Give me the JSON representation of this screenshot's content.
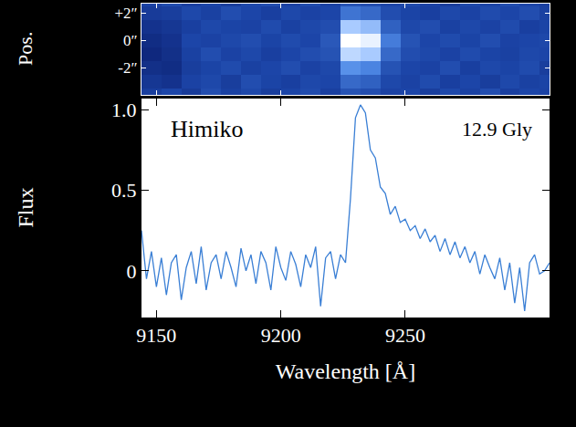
{
  "chart_data": [
    {
      "type": "heatmap",
      "y_label": "Pos.",
      "x": [
        9148,
        9156,
        9164,
        9172,
        9180,
        9188,
        9196,
        9204,
        9212,
        9220,
        9228,
        9236,
        9244,
        9252,
        9260,
        9268,
        9276,
        9284,
        9292,
        9300,
        9308
      ],
      "y": [
        -4,
        -3,
        -2,
        -1,
        0,
        1,
        2,
        3
      ],
      "z": [
        [
          0.3,
          0.35,
          0.28,
          0.38,
          0.32,
          0.36,
          0.3,
          0.34,
          0.37,
          0.31,
          0.4,
          0.38,
          0.33,
          0.35,
          0.3,
          0.36,
          0.32,
          0.38,
          0.31,
          0.35,
          0.33
        ],
        [
          0.25,
          0.22,
          0.33,
          0.36,
          0.3,
          0.38,
          0.34,
          0.31,
          0.36,
          0.35,
          0.48,
          0.45,
          0.36,
          0.33,
          0.37,
          0.31,
          0.35,
          0.3,
          0.36,
          0.32,
          0.34
        ],
        [
          0.2,
          0.18,
          0.3,
          0.34,
          0.37,
          0.32,
          0.35,
          0.38,
          0.33,
          0.36,
          0.62,
          0.58,
          0.4,
          0.35,
          0.33,
          0.38,
          0.31,
          0.36,
          0.34,
          0.37,
          0.3
        ],
        [
          0.15,
          0.2,
          0.32,
          0.38,
          0.33,
          0.36,
          0.31,
          0.35,
          0.38,
          0.4,
          0.85,
          0.8,
          0.48,
          0.38,
          0.36,
          0.33,
          0.37,
          0.34,
          0.32,
          0.36,
          0.35
        ],
        [
          0.18,
          0.22,
          0.35,
          0.33,
          0.36,
          0.38,
          0.34,
          0.37,
          0.35,
          0.42,
          1.0,
          0.95,
          0.55,
          0.4,
          0.35,
          0.37,
          0.34,
          0.38,
          0.33,
          0.35,
          0.36
        ],
        [
          0.22,
          0.25,
          0.31,
          0.36,
          0.34,
          0.33,
          0.37,
          0.32,
          0.36,
          0.38,
          0.8,
          0.75,
          0.45,
          0.36,
          0.38,
          0.32,
          0.36,
          0.33,
          0.37,
          0.31,
          0.34
        ],
        [
          0.28,
          0.3,
          0.36,
          0.32,
          0.38,
          0.35,
          0.31,
          0.36,
          0.33,
          0.35,
          0.52,
          0.48,
          0.38,
          0.34,
          0.31,
          0.36,
          0.33,
          0.37,
          0.35,
          0.38,
          0.32
        ],
        [
          0.33,
          0.37,
          0.31,
          0.35,
          0.3,
          0.36,
          0.38,
          0.33,
          0.37,
          0.32,
          0.4,
          0.38,
          0.35,
          0.37,
          0.33,
          0.3,
          0.36,
          0.34,
          0.38,
          0.35,
          0.31
        ]
      ],
      "zlim": [
        0,
        1
      ],
      "xlim": [
        9144,
        9308
      ],
      "ylim": [
        -4,
        2.7
      ],
      "yticks": [
        {
          "value": 2,
          "label": "+2″"
        },
        {
          "value": 0,
          "label": "0″"
        },
        {
          "value": -2,
          "label": "-2″"
        }
      ],
      "tick_labels": "y"
    },
    {
      "type": "line",
      "x_label": "Wavelength [Å]",
      "y_label": "Flux",
      "annotations": [
        "Himiko",
        "12.9 Gly"
      ],
      "color": "#3a7fd5",
      "x": [
        9144,
        9146,
        9148,
        9150,
        9152,
        9154,
        9156,
        9158,
        9160,
        9162,
        9164,
        9166,
        9168,
        9170,
        9172,
        9174,
        9176,
        9178,
        9180,
        9182,
        9184,
        9186,
        9188,
        9190,
        9192,
        9194,
        9196,
        9198,
        9200,
        9202,
        9204,
        9206,
        9208,
        9210,
        9212,
        9214,
        9216,
        9218,
        9220,
        9222,
        9224,
        9226,
        9228,
        9230,
        9232,
        9234,
        9236,
        9238,
        9240,
        9242,
        9244,
        9246,
        9248,
        9250,
        9252,
        9254,
        9256,
        9258,
        9260,
        9262,
        9264,
        9266,
        9268,
        9270,
        9272,
        9274,
        9276,
        9278,
        9280,
        9282,
        9284,
        9286,
        9288,
        9290,
        9292,
        9294,
        9296,
        9298,
        9300,
        9302,
        9304,
        9306,
        9308
      ],
      "values": [
        0.25,
        -0.05,
        0.12,
        -0.1,
        0.08,
        -0.15,
        0.05,
        0.1,
        -0.18,
        0.02,
        0.12,
        -0.08,
        0.15,
        -0.12,
        0.05,
        0.1,
        -0.05,
        0.12,
        0.02,
        -0.1,
        0.14,
        0.0,
        0.1,
        -0.08,
        0.12,
        0.05,
        -0.12,
        0.15,
        0.02,
        -0.06,
        0.12,
        0.04,
        -0.1,
        0.1,
        0.02,
        0.15,
        -0.22,
        0.08,
        0.12,
        -0.05,
        0.1,
        0.05,
        0.45,
        0.95,
        1.03,
        0.98,
        0.75,
        0.7,
        0.52,
        0.48,
        0.35,
        0.4,
        0.3,
        0.32,
        0.25,
        0.28,
        0.2,
        0.26,
        0.18,
        0.22,
        0.12,
        0.2,
        0.1,
        0.18,
        0.08,
        0.15,
        0.05,
        0.12,
        -0.02,
        0.1,
        0.02,
        -0.05,
        0.08,
        -0.12,
        0.05,
        -0.2,
        0.02,
        -0.25,
        0.05,
        0.1,
        -0.02,
        0.0,
        0.05
      ],
      "xlim": [
        9144,
        9308
      ],
      "ylim": [
        -0.29,
        1.07
      ],
      "xticks": [
        9150,
        9200,
        9250
      ],
      "yticks": [
        0,
        0.5,
        {
          "value": 1,
          "label": "1.0"
        }
      ]
    }
  ]
}
